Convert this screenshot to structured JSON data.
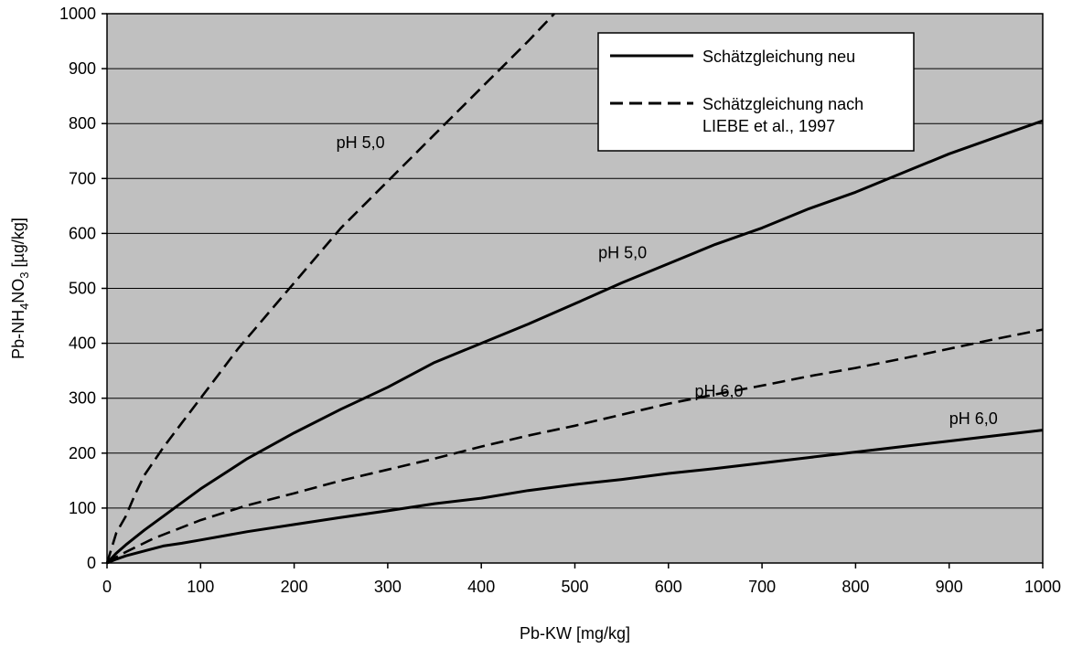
{
  "chart_data": {
    "type": "line",
    "title": "",
    "xlabel": "Pb-KW [mg/kg]",
    "ylabel": {
      "main": "Pb-NH",
      "sub1": "4",
      "mid": "NO",
      "sub2": "3",
      "end": " [µg/kg]"
    },
    "xlim": [
      0,
      1000
    ],
    "ylim": [
      0,
      1000
    ],
    "xticks": [
      0,
      100,
      200,
      300,
      400,
      500,
      600,
      700,
      800,
      900,
      1000
    ],
    "yticks": [
      0,
      100,
      200,
      300,
      400,
      500,
      600,
      700,
      800,
      900,
      1000
    ],
    "grid": "horizontal",
    "colors": {
      "plot_background": "#c0c0c0",
      "line": "#000000",
      "gridline": "#000000"
    },
    "legend": {
      "placement": "top-right",
      "entries": [
        {
          "style": "solid",
          "lines": [
            "Schätzgleichung neu"
          ]
        },
        {
          "style": "dashed",
          "lines": [
            "Schätzgleichung nach",
            "LIEBE et al., 1997"
          ]
        }
      ]
    },
    "series": [
      {
        "style": "solid",
        "x": [
          0,
          10,
          20,
          40,
          60,
          80,
          100,
          150,
          200,
          250,
          300,
          350,
          400,
          450,
          500,
          550,
          600,
          650,
          700,
          750,
          800,
          850,
          900,
          950,
          1000
        ],
        "y": [
          0,
          18,
          33,
          60,
          85,
          110,
          135,
          190,
          237,
          280,
          320,
          365,
          400,
          435,
          472,
          510,
          545,
          580,
          610,
          645,
          675,
          710,
          745,
          775,
          805
        ]
      },
      {
        "style": "solid",
        "x": [
          0,
          10,
          20,
          40,
          60,
          80,
          100,
          150,
          200,
          250,
          300,
          350,
          400,
          450,
          500,
          550,
          600,
          650,
          700,
          750,
          800,
          850,
          900,
          950,
          1000
        ],
        "y": [
          0,
          7,
          13,
          22,
          31,
          36,
          42,
          57,
          70,
          83,
          95,
          108,
          118,
          132,
          143,
          152,
          163,
          172,
          182,
          192,
          202,
          212,
          222,
          232,
          242
        ]
      },
      {
        "style": "dashed",
        "x": [
          0,
          10,
          20,
          30,
          40,
          50,
          60,
          80,
          100,
          120,
          140,
          160,
          180,
          200,
          250,
          300,
          350,
          400,
          450,
          478
        ],
        "y": [
          0,
          55,
          85,
          125,
          160,
          185,
          210,
          255,
          300,
          345,
          390,
          430,
          470,
          510,
          610,
          695,
          780,
          865,
          950,
          1000
        ]
      },
      {
        "style": "dashed",
        "x": [
          0,
          10,
          20,
          50,
          100,
          150,
          200,
          250,
          300,
          350,
          400,
          450,
          500,
          550,
          600,
          650,
          700,
          750,
          800,
          850,
          900,
          950,
          1000
        ],
        "y": [
          0,
          11,
          20,
          45,
          78,
          105,
          127,
          150,
          170,
          190,
          212,
          232,
          250,
          270,
          290,
          307,
          323,
          340,
          355,
          372,
          390,
          408,
          425
        ]
      }
    ],
    "annotations": [
      {
        "text": "pH 5,0",
        "x": 245,
        "y": 755
      },
      {
        "text": "pH 5,0",
        "x": 525,
        "y": 555
      },
      {
        "text": "pH 6,0",
        "x": 628,
        "y": 303
      },
      {
        "text": "pH 6,0",
        "x": 900,
        "y": 253
      }
    ]
  }
}
